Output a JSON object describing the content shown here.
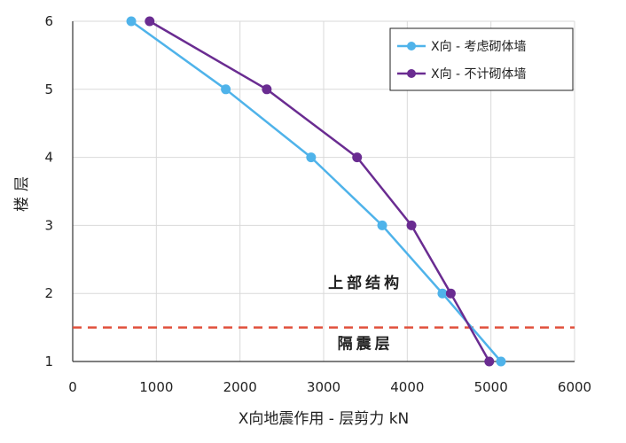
{
  "chart_data": {
    "type": "line",
    "xlabel": "X向地震作用 - 层剪力 kN",
    "ylabel": "楼层",
    "xlim": [
      0,
      6000
    ],
    "ylim": [
      1,
      6
    ],
    "x_ticks": [
      "0",
      "1000",
      "2000",
      "3000",
      "4000",
      "5000",
      "6000"
    ],
    "y_ticks": [
      "1",
      "2",
      "3",
      "4",
      "5",
      "6"
    ],
    "grid": true,
    "legend_position": "top-right",
    "series": [
      {
        "name": "X向 - 考虑砌体墙",
        "color": "#4fb3ea",
        "points": [
          {
            "x": 5120,
            "y": 1
          },
          {
            "x": 4420,
            "y": 2
          },
          {
            "x": 3700,
            "y": 3
          },
          {
            "x": 2850,
            "y": 4
          },
          {
            "x": 1830,
            "y": 5
          },
          {
            "x": 700,
            "y": 6
          }
        ]
      },
      {
        "name": "X向 - 不计砌体墙",
        "color": "#6a2c91",
        "points": [
          {
            "x": 4980,
            "y": 1
          },
          {
            "x": 4520,
            "y": 2
          },
          {
            "x": 4050,
            "y": 3
          },
          {
            "x": 3400,
            "y": 4
          },
          {
            "x": 2320,
            "y": 5
          },
          {
            "x": 920,
            "y": 6
          }
        ]
      }
    ],
    "reference_lines": [
      {
        "y": 1.5,
        "color": "#e0503c",
        "style": "dashed"
      }
    ],
    "annotations": [
      {
        "text": "上部结构",
        "x": 3500,
        "y": 2.08
      },
      {
        "text": "隔震层",
        "x": 3500,
        "y": 1.19
      }
    ]
  }
}
